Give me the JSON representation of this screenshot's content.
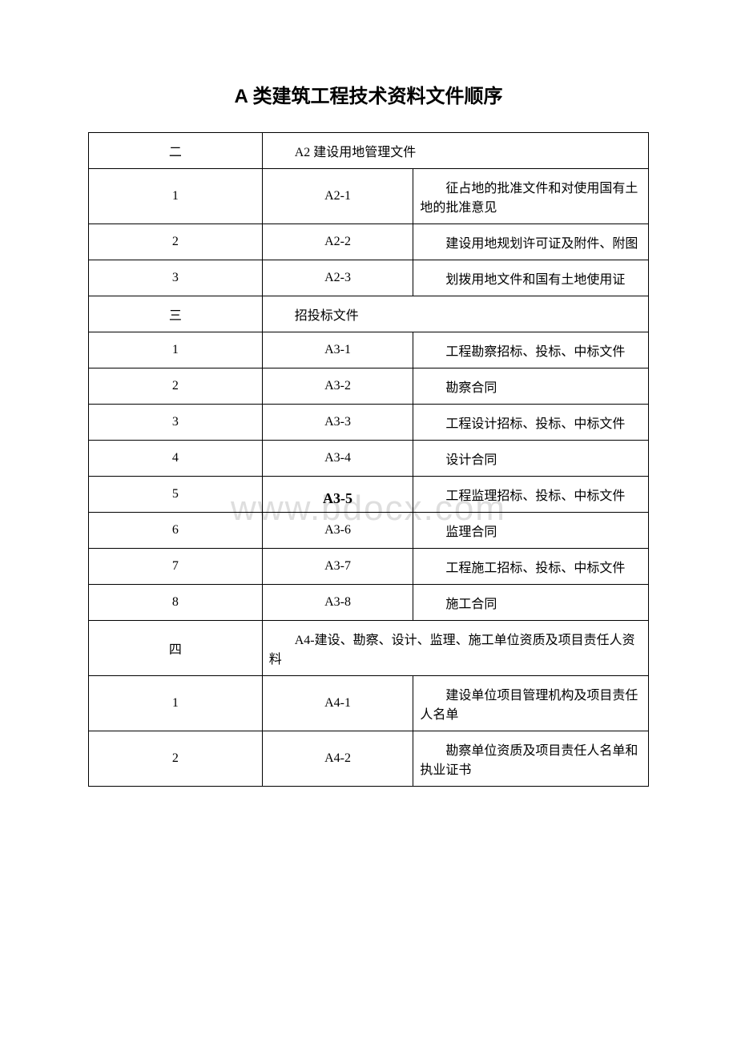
{
  "title": "A 类建筑工程技术资料文件顺序",
  "sections": {
    "s1": {
      "num": "二",
      "header": "A2 建设用地管理文件"
    },
    "s1r1": {
      "idx": "1",
      "code": "A2-1",
      "desc": "征占地的批准文件和对使用国有土地的批准意见"
    },
    "s1r2": {
      "idx": "2",
      "code": "A2-2",
      "desc": "建设用地规划许可证及附件、附图"
    },
    "s1r3": {
      "idx": "3",
      "code": "A2-3",
      "desc": "划拨用地文件和国有土地使用证"
    },
    "s2": {
      "num": "三",
      "header": "招投标文件"
    },
    "s2r1": {
      "idx": "1",
      "code": "A3-1",
      "desc": "工程勘察招标、投标、中标文件"
    },
    "s2r2": {
      "idx": "2",
      "code": "A3-2",
      "desc": "勘察合同"
    },
    "s2r3": {
      "idx": "3",
      "code": "A3-3",
      "desc": "工程设计招标、投标、中标文件"
    },
    "s2r4": {
      "idx": "4",
      "code": "A3-4",
      "desc": "设计合同"
    },
    "s2r5": {
      "idx": "5",
      "code": "A3-5",
      "desc": "工程监理招标、投标、中标文件"
    },
    "s2r6": {
      "idx": "6",
      "code": "A3-6",
      "desc": "监理合同"
    },
    "s2r7": {
      "idx": "7",
      "code": "A3-7",
      "desc": "工程施工招标、投标、中标文件"
    },
    "s2r8": {
      "idx": "8",
      "code": "A3-8",
      "desc": "施工合同"
    },
    "s3": {
      "num": "四",
      "header": "A4-建设、勘察、设计、监理、施工单位资质及项目责任人资料"
    },
    "s3r1": {
      "idx": "1",
      "code": "A4-1",
      "desc": "建设单位项目管理机构及项目责任人名单"
    },
    "s3r2": {
      "idx": "2",
      "code": "A4-2",
      "desc": "勘察单位资质及项目责任人名单和执业证书"
    }
  },
  "watermark": "www.bdocx.com"
}
